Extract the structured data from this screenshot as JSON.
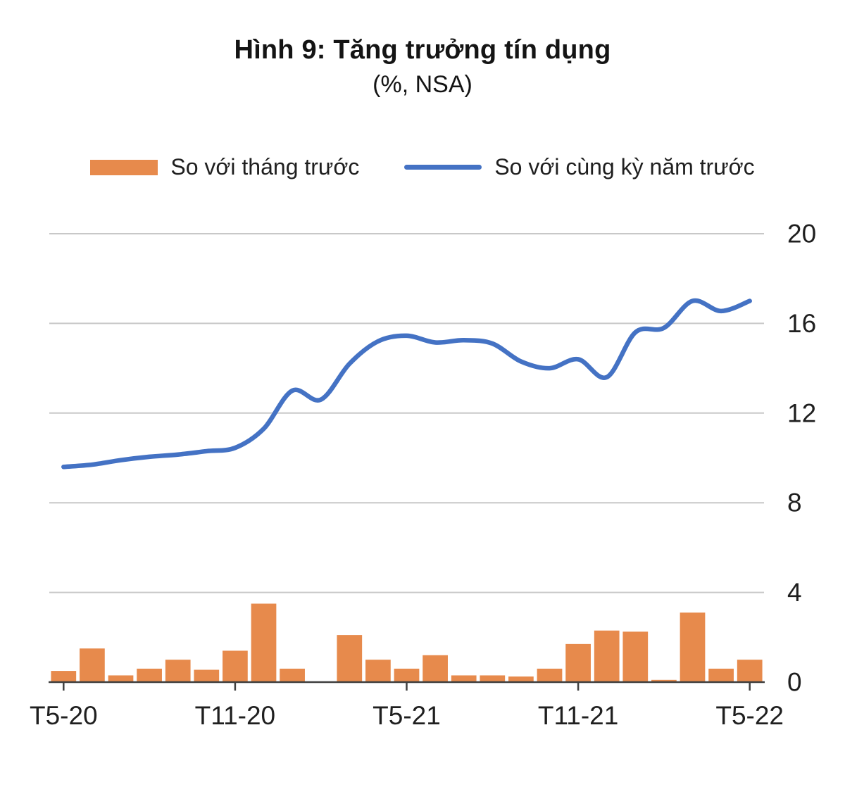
{
  "chart_data": {
    "type": "combo-bar-line",
    "title": "Hình 9: Tăng trưởng tín dụng",
    "subtitle": "(%, NSA)",
    "categories": [
      "T5-20",
      "T6-20",
      "T7-20",
      "T8-20",
      "T9-20",
      "T10-20",
      "T11-20",
      "T12-20",
      "T1-21",
      "T2-21",
      "T3-21",
      "T4-21",
      "T5-21",
      "T6-21",
      "T7-21",
      "T8-21",
      "T9-21",
      "T10-21",
      "T11-21",
      "T12-21",
      "T1-22",
      "T2-22",
      "T3-22",
      "T4-22",
      "T5-22"
    ],
    "x_tick_indices": [
      0,
      6,
      12,
      18,
      24
    ],
    "x_tick_labels": [
      "T5-20",
      "T11-20",
      "T5-21",
      "T11-21",
      "T5-22"
    ],
    "series": [
      {
        "name": "So với tháng trước",
        "type": "bar",
        "color": "#E78A4C",
        "values": [
          0.5,
          1.5,
          0.3,
          0.6,
          1.0,
          0.55,
          1.4,
          3.5,
          0.6,
          0,
          2.1,
          1.0,
          0.6,
          1.2,
          0.3,
          0.3,
          0.25,
          0.6,
          1.7,
          2.3,
          2.25,
          0.1,
          3.1,
          0.6,
          1.0
        ]
      },
      {
        "name": "So với cùng kỳ năm trước",
        "type": "line",
        "color": "#4472C4",
        "values": [
          9.6,
          9.7,
          9.9,
          10.05,
          10.15,
          10.3,
          10.45,
          11.3,
          13.0,
          12.6,
          14.2,
          15.2,
          15.45,
          15.15,
          15.25,
          15.1,
          14.3,
          14.0,
          14.4,
          13.6,
          15.6,
          15.8,
          17.0,
          16.55,
          17.0
        ]
      }
    ],
    "ylim": [
      0,
      20
    ],
    "yticks": [
      0,
      4,
      8,
      12,
      16,
      20
    ],
    "grid": true,
    "legend_position": "top",
    "colors": {
      "grid": "#C8C8C8",
      "axis": "#3F3F3F",
      "text": "#1F1F1F"
    }
  }
}
